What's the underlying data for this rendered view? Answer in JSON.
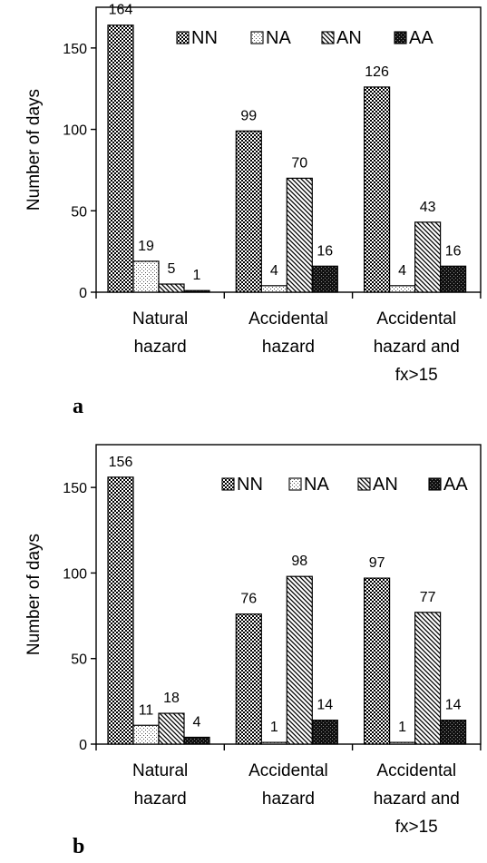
{
  "colors": {
    "NN": "#000000",
    "NA": "#ffffff",
    "AN": "#ffffff",
    "AA": "#111111"
  },
  "chart_data": [
    {
      "panel_label": "a",
      "type": "bar",
      "ylabel": "Number of days",
      "ylim": [
        0,
        175
      ],
      "yticks": [
        0,
        50,
        100,
        150
      ],
      "categories": [
        [
          "Natural",
          "hazard"
        ],
        [
          "Accidental",
          "hazard"
        ],
        [
          "Accidental",
          "hazard and",
          "fx>15"
        ]
      ],
      "series": [
        {
          "name": "NN",
          "values": [
            164,
            99,
            126
          ]
        },
        {
          "name": "NA",
          "values": [
            19,
            4,
            4
          ]
        },
        {
          "name": "AN",
          "values": [
            5,
            70,
            43
          ]
        },
        {
          "name": "AA",
          "values": [
            1,
            16,
            16
          ]
        }
      ],
      "legend": "top-right"
    },
    {
      "panel_label": "b",
      "type": "bar",
      "ylabel": "Number of days",
      "ylim": [
        0,
        175
      ],
      "yticks": [
        0,
        50,
        100,
        150
      ],
      "categories": [
        [
          "Natural",
          "hazard"
        ],
        [
          "Accidental",
          "hazard"
        ],
        [
          "Accidental",
          "hazard and",
          "fx>15"
        ]
      ],
      "series": [
        {
          "name": "NN",
          "values": [
            156,
            76,
            97
          ]
        },
        {
          "name": "NA",
          "values": [
            11,
            1,
            1
          ]
        },
        {
          "name": "AN",
          "values": [
            18,
            98,
            77
          ]
        },
        {
          "name": "AA",
          "values": [
            4,
            14,
            14
          ]
        }
      ],
      "legend": "top-right"
    }
  ]
}
